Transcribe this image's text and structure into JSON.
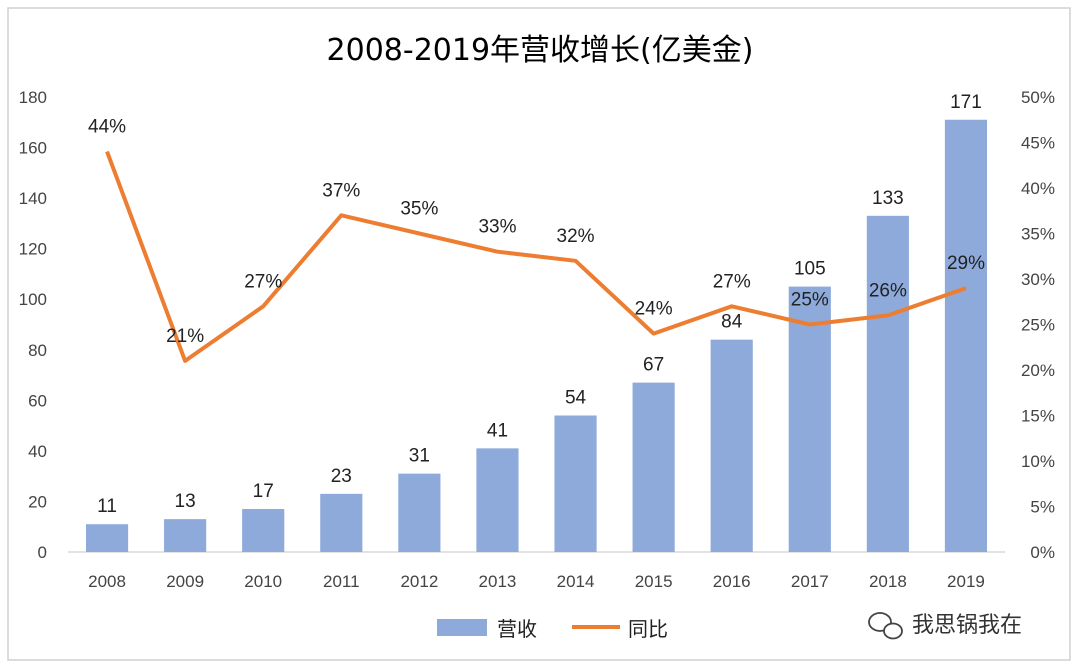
{
  "chart_data": {
    "type": "bar",
    "title": "2008-2019年营收增长(亿美金)",
    "categories": [
      "2008",
      "2009",
      "2010",
      "2011",
      "2012",
      "2013",
      "2014",
      "2015",
      "2016",
      "2017",
      "2018",
      "2019"
    ],
    "series": [
      {
        "name": "营收",
        "type": "bar",
        "axis": "left",
        "color": "#8eaadb",
        "values": [
          11,
          13,
          17,
          23,
          31,
          41,
          54,
          67,
          84,
          105,
          133,
          171
        ],
        "labels": [
          "11",
          "13",
          "17",
          "23",
          "31",
          "41",
          "54",
          "67",
          "84",
          "105",
          "133",
          "171"
        ]
      },
      {
        "name": "同比",
        "type": "line",
        "axis": "right",
        "color": "#ed7d31",
        "values": [
          0.44,
          0.21,
          0.27,
          0.37,
          0.35,
          0.33,
          0.32,
          0.24,
          0.27,
          0.25,
          0.26,
          0.29
        ],
        "labels": [
          "44%",
          "21%",
          "27%",
          "37%",
          "35%",
          "33%",
          "32%",
          "24%",
          "27%",
          "25%",
          "26%",
          "29%"
        ]
      }
    ],
    "y_left": {
      "min": 0,
      "max": 180,
      "ticks": [
        "0",
        "20",
        "40",
        "60",
        "80",
        "100",
        "120",
        "140",
        "160",
        "180"
      ]
    },
    "y_right": {
      "min": 0,
      "max": 0.5,
      "ticks": [
        "0%",
        "5%",
        "10%",
        "15%",
        "20%",
        "25%",
        "30%",
        "35%",
        "40%",
        "45%",
        "50%"
      ]
    },
    "grid": false,
    "legend_position": "bottom"
  },
  "watermark": {
    "text": "我思锅我在",
    "icon": "wechat-icon"
  }
}
